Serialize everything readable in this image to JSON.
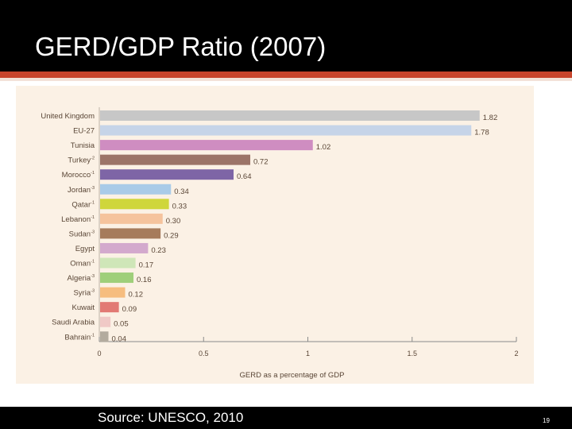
{
  "slide": {
    "title": "GERD/GDP Ratio (2007)",
    "source": "Source: UNESCO, 2010",
    "page_number": "19"
  },
  "colors": {
    "header_bg": "#000000",
    "accent_rule": "#c8452c",
    "chart_bg": "#fbf1e5",
    "axis": "#8a8a8a",
    "label_text": "#5a4636"
  },
  "chart_data": {
    "type": "bar",
    "orientation": "horizontal",
    "categories": [
      "United Kingdom",
      "EU-27",
      "Tunisia",
      "Turkey",
      "Morocco",
      "Jordan",
      "Qatar",
      "Lebanon",
      "Sudan",
      "Egypt",
      "Oman",
      "Algeria",
      "Syria",
      "Kuwait",
      "Saudi Arabia",
      "Bahrain"
    ],
    "category_notes": [
      "",
      "",
      "",
      "-2",
      "-1",
      "-3",
      "-1",
      "-1",
      "-3",
      "",
      "-1",
      "-3",
      "-3",
      "",
      "",
      "-1"
    ],
    "values": [
      1.82,
      1.78,
      1.02,
      0.72,
      0.64,
      0.34,
      0.33,
      0.3,
      0.29,
      0.23,
      0.17,
      0.16,
      0.12,
      0.09,
      0.05,
      0.04
    ],
    "value_labels": [
      "1.82",
      "1.78",
      "1.02",
      "0.72",
      "0.64",
      "0.34",
      "0.33",
      "0.30",
      "0.29",
      "0.23",
      "0.17",
      "0.16",
      "0.12",
      "0.09",
      "0.05",
      "0.04"
    ],
    "bar_colors": [
      "#c7c7c7",
      "#c6d4e8",
      "#cf8dc1",
      "#9c7468",
      "#7e65a6",
      "#a9cbe8",
      "#cfd63b",
      "#f5c39d",
      "#a67b5b",
      "#d3a9cd",
      "#cfe6b8",
      "#9fcf7a",
      "#f6bd7f",
      "#e27a74",
      "#f0c9c6",
      "#b3ab9e"
    ],
    "xlim": [
      0,
      2
    ],
    "xticks": [
      0,
      0.5,
      1,
      1.5,
      2
    ],
    "xtick_labels": [
      "0",
      "0.5",
      "1",
      "1.5",
      "2"
    ],
    "xlabel": "GERD as a percentage of GDP",
    "ylabel": "",
    "title": ""
  }
}
